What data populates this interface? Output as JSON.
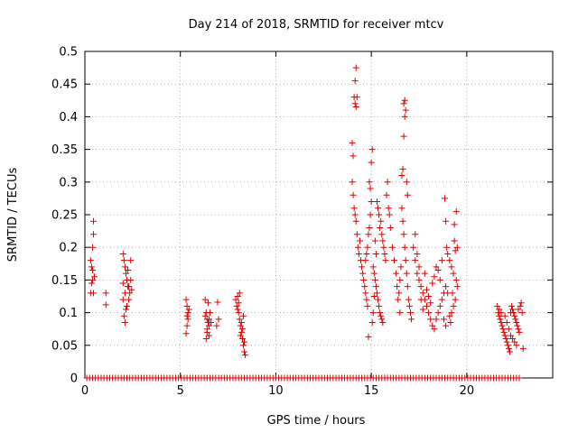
{
  "chart_data": {
    "type": "scatter",
    "title": "Day 214 of 2018, SRMTID for receiver mtcv",
    "xlabel": "GPS time / hours",
    "ylabel": "SRMTID / TECUs",
    "xlim": [
      0,
      24.5
    ],
    "ylim": [
      0,
      0.5
    ],
    "xticks": [
      0,
      5,
      10,
      15,
      20
    ],
    "xtick_labels": [
      "0",
      "5",
      "10",
      "15",
      "20"
    ],
    "yticks": [
      0,
      0.05,
      0.1,
      0.15,
      0.2,
      0.25,
      0.3,
      0.35,
      0.4,
      0.45,
      0.5
    ],
    "ytick_labels": [
      "0",
      "0.05",
      "0.1",
      "0.15",
      "0.2",
      "0.25",
      "0.3",
      "0.35",
      "0.4",
      "0.45",
      "0.5"
    ],
    "grid": true,
    "marker": "+",
    "color": "#dd0000",
    "series": [
      {
        "name": "SRMTID",
        "points": [
          [
            0.3,
            0.13
          ],
          [
            0.35,
            0.17
          ],
          [
            0.4,
            0.2
          ],
          [
            0.45,
            0.24
          ],
          [
            0.45,
            0.22
          ],
          [
            0.4,
            0.15
          ],
          [
            0.35,
            0.145
          ],
          [
            0.3,
            0.18
          ],
          [
            0.5,
            0.155
          ],
          [
            0.45,
            0.13
          ],
          [
            0.4,
            0.165
          ],
          [
            1.1,
            0.13
          ],
          [
            1.1,
            0.112
          ],
          [
            2.0,
            0.19
          ],
          [
            2.05,
            0.18
          ],
          [
            2.1,
            0.17
          ],
          [
            2.15,
            0.16
          ],
          [
            2.2,
            0.15
          ],
          [
            2.25,
            0.14
          ],
          [
            2.1,
            0.13
          ],
          [
            2.0,
            0.12
          ],
          [
            2.05,
            0.095
          ],
          [
            2.1,
            0.085
          ],
          [
            2.2,
            0.11
          ],
          [
            2.3,
            0.14
          ],
          [
            2.35,
            0.13
          ],
          [
            2.4,
            0.15
          ],
          [
            2.45,
            0.135
          ],
          [
            2.3,
            0.12
          ],
          [
            2.15,
            0.105
          ],
          [
            2.25,
            0.165
          ],
          [
            2.0,
            0.145
          ],
          [
            2.4,
            0.18
          ],
          [
            5.3,
            0.12
          ],
          [
            5.35,
            0.11
          ],
          [
            5.4,
            0.1
          ],
          [
            5.35,
            0.095
          ],
          [
            5.4,
            0.09
          ],
          [
            5.3,
            0.068
          ],
          [
            5.45,
            0.105
          ],
          [
            5.35,
            0.08
          ],
          [
            6.3,
            0.12
          ],
          [
            6.35,
            0.1
          ],
          [
            6.4,
            0.09
          ],
          [
            6.45,
            0.085
          ],
          [
            6.5,
            0.08
          ],
          [
            6.4,
            0.07
          ],
          [
            6.35,
            0.06
          ],
          [
            6.5,
            0.065
          ],
          [
            6.55,
            0.1
          ],
          [
            6.45,
            0.115
          ],
          [
            6.3,
            0.095
          ],
          [
            6.6,
            0.085
          ],
          [
            6.4,
            0.075
          ],
          [
            6.5,
            0.09
          ],
          [
            6.95,
            0.116
          ],
          [
            6.9,
            0.08
          ],
          [
            7.0,
            0.09
          ],
          [
            7.9,
            0.12
          ],
          [
            7.95,
            0.11
          ],
          [
            8.0,
            0.105
          ],
          [
            8.05,
            0.1
          ],
          [
            8.1,
            0.09
          ],
          [
            8.15,
            0.08
          ],
          [
            8.2,
            0.07
          ],
          [
            8.25,
            0.06
          ],
          [
            8.3,
            0.05
          ],
          [
            8.35,
            0.04
          ],
          [
            8.0,
            0.125
          ],
          [
            8.1,
            0.13
          ],
          [
            8.2,
            0.085
          ],
          [
            8.3,
            0.095
          ],
          [
            8.15,
            0.065
          ],
          [
            8.25,
            0.075
          ],
          [
            8.35,
            0.055
          ],
          [
            8.4,
            0.035
          ],
          [
            8.05,
            0.115
          ],
          [
            14.0,
            0.36
          ],
          [
            14.05,
            0.34
          ],
          [
            14.1,
            0.43
          ],
          [
            14.15,
            0.42
          ],
          [
            14.2,
            0.475
          ],
          [
            14.15,
            0.455
          ],
          [
            14.2,
            0.415
          ],
          [
            14.25,
            0.43
          ],
          [
            14.0,
            0.3
          ],
          [
            14.05,
            0.28
          ],
          [
            14.1,
            0.26
          ],
          [
            14.15,
            0.25
          ],
          [
            14.2,
            0.24
          ],
          [
            14.25,
            0.22
          ],
          [
            14.3,
            0.2
          ],
          [
            14.35,
            0.19
          ],
          [
            14.4,
            0.21
          ],
          [
            14.45,
            0.18
          ],
          [
            14.5,
            0.17
          ],
          [
            14.55,
            0.16
          ],
          [
            14.6,
            0.15
          ],
          [
            14.65,
            0.14
          ],
          [
            14.7,
            0.13
          ],
          [
            14.75,
            0.12
          ],
          [
            14.8,
            0.11
          ],
          [
            14.85,
            0.063
          ],
          [
            14.9,
            0.3
          ],
          [
            14.95,
            0.29
          ],
          [
            15.0,
            0.33
          ],
          [
            15.05,
            0.35
          ],
          [
            15.0,
            0.27
          ],
          [
            14.95,
            0.25
          ],
          [
            14.9,
            0.23
          ],
          [
            14.85,
            0.22
          ],
          [
            14.8,
            0.2
          ],
          [
            14.75,
            0.19
          ],
          [
            14.7,
            0.18
          ],
          [
            15.1,
            0.17
          ],
          [
            15.15,
            0.16
          ],
          [
            15.2,
            0.15
          ],
          [
            15.25,
            0.14
          ],
          [
            15.3,
            0.13
          ],
          [
            15.35,
            0.12
          ],
          [
            15.4,
            0.11
          ],
          [
            15.45,
            0.1
          ],
          [
            15.5,
            0.095
          ],
          [
            15.55,
            0.09
          ],
          [
            15.6,
            0.085
          ],
          [
            15.5,
            0.24
          ],
          [
            15.55,
            0.22
          ],
          [
            15.6,
            0.21
          ],
          [
            15.65,
            0.2
          ],
          [
            15.7,
            0.19
          ],
          [
            15.75,
            0.18
          ],
          [
            15.8,
            0.28
          ],
          [
            15.85,
            0.3
          ],
          [
            15.9,
            0.26
          ],
          [
            15.95,
            0.25
          ],
          [
            16.0,
            0.23
          ],
          [
            15.3,
            0.27
          ],
          [
            15.35,
            0.26
          ],
          [
            15.4,
            0.25
          ],
          [
            15.45,
            0.23
          ],
          [
            15.2,
            0.21
          ],
          [
            15.25,
            0.19
          ],
          [
            15.15,
            0.125
          ],
          [
            15.1,
            0.1
          ],
          [
            15.05,
            0.085
          ],
          [
            16.1,
            0.2
          ],
          [
            16.2,
            0.18
          ],
          [
            16.3,
            0.16
          ],
          [
            16.35,
            0.14
          ],
          [
            16.4,
            0.12
          ],
          [
            16.5,
            0.1
          ],
          [
            16.6,
            0.31
          ],
          [
            16.65,
            0.32
          ],
          [
            16.7,
            0.37
          ],
          [
            16.75,
            0.4
          ],
          [
            16.7,
            0.42
          ],
          [
            16.75,
            0.425
          ],
          [
            16.8,
            0.41
          ],
          [
            16.6,
            0.26
          ],
          [
            16.65,
            0.24
          ],
          [
            16.7,
            0.22
          ],
          [
            16.75,
            0.2
          ],
          [
            16.8,
            0.18
          ],
          [
            16.85,
            0.16
          ],
          [
            16.9,
            0.14
          ],
          [
            16.95,
            0.12
          ],
          [
            17.0,
            0.11
          ],
          [
            17.05,
            0.1
          ],
          [
            17.1,
            0.09
          ],
          [
            16.55,
            0.17
          ],
          [
            16.5,
            0.15
          ],
          [
            16.45,
            0.13
          ],
          [
            16.85,
            0.3
          ],
          [
            16.9,
            0.28
          ],
          [
            17.2,
            0.2
          ],
          [
            17.3,
            0.18
          ],
          [
            17.4,
            0.16
          ],
          [
            17.5,
            0.15
          ],
          [
            17.6,
            0.14
          ],
          [
            17.7,
            0.13
          ],
          [
            17.8,
            0.12
          ],
          [
            17.9,
            0.11
          ],
          [
            18.0,
            0.1
          ],
          [
            18.1,
            0.09
          ],
          [
            18.2,
            0.08
          ],
          [
            18.3,
            0.075
          ],
          [
            18.4,
            0.09
          ],
          [
            18.5,
            0.1
          ],
          [
            18.6,
            0.11
          ],
          [
            18.7,
            0.12
          ],
          [
            18.8,
            0.13
          ],
          [
            18.9,
            0.14
          ],
          [
            17.3,
            0.22
          ],
          [
            17.4,
            0.19
          ],
          [
            17.5,
            0.17
          ],
          [
            17.6,
            0.12
          ],
          [
            17.7,
            0.105
          ],
          [
            17.8,
            0.16
          ],
          [
            17.9,
            0.135
          ],
          [
            18.0,
            0.125
          ],
          [
            18.1,
            0.115
          ],
          [
            18.2,
            0.145
          ],
          [
            18.3,
            0.155
          ],
          [
            18.4,
            0.17
          ],
          [
            18.5,
            0.165
          ],
          [
            18.6,
            0.15
          ],
          [
            18.7,
            0.18
          ],
          [
            18.8,
            0.09
          ],
          [
            18.9,
            0.08
          ],
          [
            18.85,
            0.275
          ],
          [
            18.9,
            0.24
          ],
          [
            18.95,
            0.2
          ],
          [
            19.0,
            0.19
          ],
          [
            19.1,
            0.18
          ],
          [
            19.2,
            0.17
          ],
          [
            19.3,
            0.16
          ],
          [
            19.35,
            0.21
          ],
          [
            19.4,
            0.195
          ],
          [
            19.45,
            0.15
          ],
          [
            19.5,
            0.14
          ],
          [
            19.4,
            0.12
          ],
          [
            19.3,
            0.11
          ],
          [
            19.2,
            0.1
          ],
          [
            19.1,
            0.095
          ],
          [
            19.0,
            0.13
          ],
          [
            19.45,
            0.255
          ],
          [
            19.5,
            0.2
          ],
          [
            19.35,
            0.235
          ],
          [
            19.25,
            0.13
          ],
          [
            19.15,
            0.085
          ],
          [
            21.6,
            0.11
          ],
          [
            21.65,
            0.1
          ],
          [
            21.7,
            0.095
          ],
          [
            21.75,
            0.09
          ],
          [
            21.8,
            0.085
          ],
          [
            21.85,
            0.08
          ],
          [
            21.9,
            0.075
          ],
          [
            21.95,
            0.07
          ],
          [
            22.0,
            0.065
          ],
          [
            22.05,
            0.06
          ],
          [
            22.1,
            0.055
          ],
          [
            22.15,
            0.05
          ],
          [
            22.2,
            0.045
          ],
          [
            22.25,
            0.04
          ],
          [
            22.3,
            0.1
          ],
          [
            22.35,
            0.11
          ],
          [
            22.4,
            0.105
          ],
          [
            22.45,
            0.1
          ],
          [
            22.5,
            0.095
          ],
          [
            22.55,
            0.09
          ],
          [
            22.6,
            0.085
          ],
          [
            22.65,
            0.08
          ],
          [
            22.7,
            0.075
          ],
          [
            22.75,
            0.07
          ],
          [
            22.8,
            0.11
          ],
          [
            22.85,
            0.115
          ],
          [
            22.9,
            0.1
          ],
          [
            22.95,
            0.045
          ],
          [
            22.0,
            0.095
          ],
          [
            22.1,
            0.085
          ],
          [
            22.2,
            0.075
          ],
          [
            22.3,
            0.065
          ],
          [
            22.4,
            0.06
          ],
          [
            22.5,
            0.055
          ],
          [
            22.6,
            0.05
          ],
          [
            22.7,
            0.105
          ],
          [
            21.7,
            0.105
          ],
          [
            21.8,
            0.1
          ]
        ],
        "zero_x": [
          0.1,
          0.25,
          0.4,
          0.55,
          0.7,
          0.85,
          1.0,
          1.15,
          1.3,
          1.45,
          1.6,
          1.75,
          1.9,
          2.05,
          2.2,
          2.35,
          2.5,
          2.65,
          2.8,
          2.95,
          3.1,
          3.25,
          3.4,
          3.55,
          3.7,
          3.85,
          4.0,
          4.15,
          4.3,
          4.45,
          4.6,
          4.75,
          4.9,
          5.05,
          5.2,
          5.35,
          5.5,
          5.65,
          5.8,
          5.95,
          6.1,
          6.25,
          6.4,
          6.55,
          6.7,
          6.85,
          7.0,
          7.15,
          7.3,
          7.45,
          7.6,
          7.75,
          7.9,
          8.05,
          8.2,
          8.35,
          8.5,
          8.65,
          8.8,
          8.95,
          9.1,
          9.25,
          9.4,
          9.55,
          9.7,
          9.85,
          10.0,
          10.15,
          10.3,
          10.45,
          10.6,
          10.75,
          10.9,
          11.05,
          11.2,
          11.35,
          11.5,
          11.65,
          11.8,
          11.95,
          12.1,
          12.25,
          12.4,
          12.55,
          12.7,
          12.85,
          13.0,
          13.15,
          13.3,
          13.45,
          13.6,
          13.75,
          13.9,
          14.05,
          14.2,
          14.35,
          14.5,
          14.65,
          14.8,
          14.95,
          15.1,
          15.25,
          15.4,
          15.55,
          15.7,
          15.85,
          16.0,
          16.15,
          16.3,
          16.45,
          16.6,
          16.75,
          16.9,
          17.05,
          17.2,
          17.35,
          17.5,
          17.65,
          17.8,
          17.95,
          18.1,
          18.25,
          18.4,
          18.55,
          18.7,
          18.85,
          19.0,
          19.15,
          19.3,
          19.45,
          19.6,
          19.75,
          19.9,
          20.05,
          20.2,
          20.35,
          20.5,
          20.65,
          20.8,
          20.95,
          21.1,
          21.25,
          21.4,
          21.55,
          21.7,
          21.85,
          22.0,
          22.15,
          22.3,
          22.45,
          22.6,
          22.75
        ]
      }
    ]
  }
}
